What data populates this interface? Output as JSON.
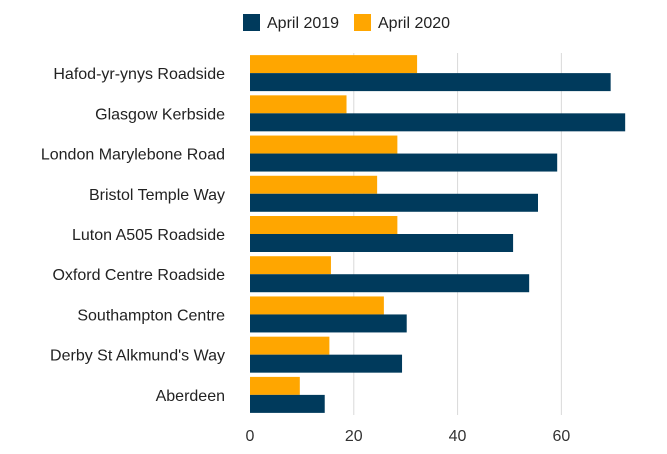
{
  "chart_data": {
    "type": "bar",
    "orientation": "horizontal",
    "categories": [
      "Hafod-yr-ynys Roadside",
      "Glasgow Kerbside",
      "London Marylebone Road",
      "Bristol Temple Way",
      "Luton A505 Roadside",
      "Oxford Centre Roadside",
      "Southampton Centre",
      "Derby St Alkmund's Way",
      "Aberdeen"
    ],
    "series": [
      {
        "name": "April 2019",
        "color": "#003a5c",
        "values": [
          69.5,
          72.3,
          59.2,
          55.5,
          50.7,
          53.8,
          30.2,
          29.3,
          14.4
        ]
      },
      {
        "name": "April 2020",
        "color": "#ffa600",
        "values": [
          32.2,
          18.6,
          28.4,
          24.5,
          28.4,
          15.6,
          25.8,
          15.3,
          9.6
        ]
      }
    ],
    "xlim": [
      0,
      74
    ],
    "xticks": [
      0,
      20,
      40,
      60
    ],
    "grid": true,
    "legend": "top"
  }
}
